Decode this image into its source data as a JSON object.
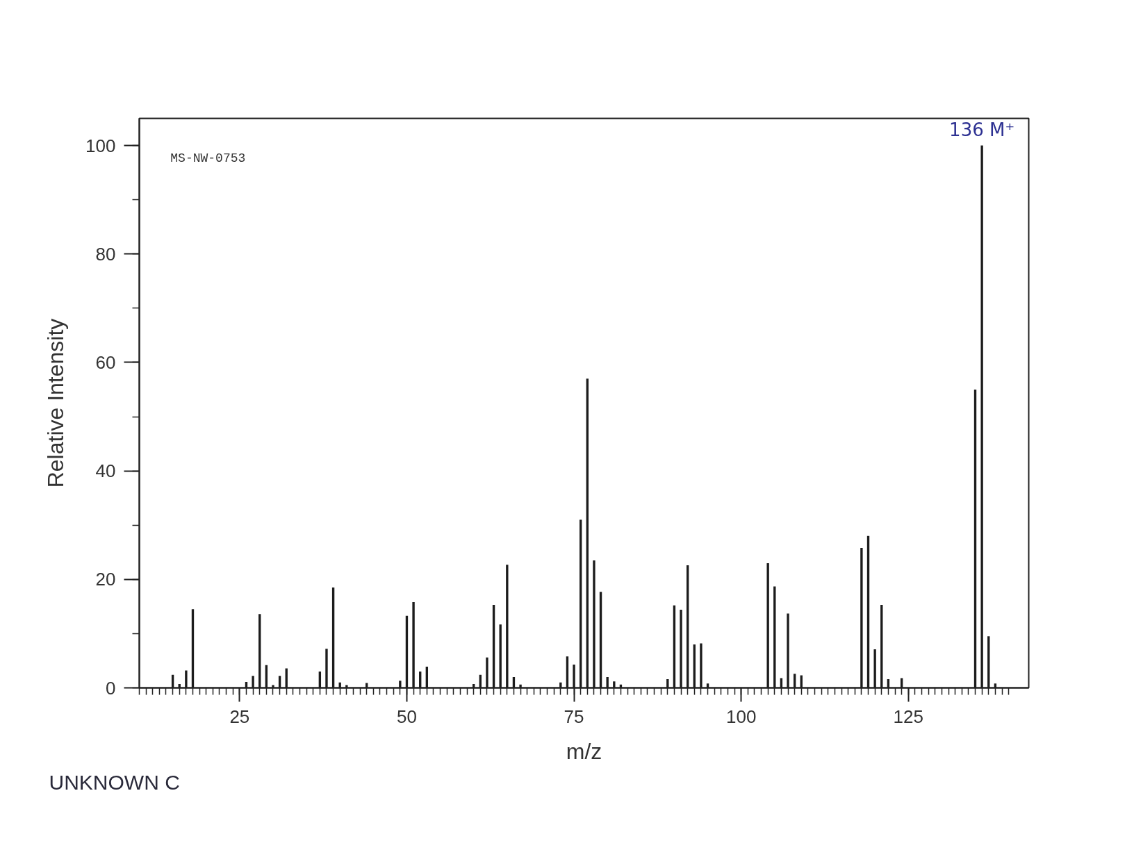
{
  "chart_data": {
    "type": "bar",
    "xlabel": "m/z",
    "ylabel": "Relative Intensity",
    "annotations": [
      "MS-NW-0753",
      {
        "text": "136 M⁺",
        "x": 136,
        "y": 100
      },
      "UNKNOWN C"
    ],
    "x": [
      15,
      16,
      17,
      18,
      26,
      27,
      28,
      29,
      30,
      31,
      32,
      37,
      38,
      39,
      40,
      41,
      44,
      49,
      50,
      51,
      52,
      53,
      60,
      61,
      62,
      63,
      64,
      65,
      66,
      67,
      73,
      74,
      75,
      76,
      77,
      78,
      79,
      80,
      81,
      82,
      89,
      90,
      91,
      92,
      93,
      94,
      95,
      104,
      105,
      106,
      107,
      108,
      109,
      118,
      119,
      120,
      121,
      122,
      124,
      135,
      136,
      137,
      138
    ],
    "values": [
      2.4,
      0.7,
      3.2,
      14.5,
      1.1,
      2.2,
      13.6,
      4.2,
      0.5,
      2.2,
      3.6,
      3.0,
      7.2,
      18.5,
      1.0,
      0.5,
      0.9,
      1.3,
      13.3,
      15.8,
      3.0,
      3.9,
      0.7,
      2.4,
      5.6,
      15.3,
      11.7,
      22.7,
      2.0,
      0.6,
      1.0,
      5.8,
      4.3,
      31,
      57,
      23.5,
      17.7,
      2.0,
      1.2,
      0.6,
      1.6,
      15.2,
      14.4,
      22.6,
      8.0,
      8.2,
      0.8,
      23.0,
      18.7,
      1.8,
      13.7,
      2.6,
      2.3,
      25.8,
      28.0,
      7.1,
      15.3,
      1.6,
      1.8,
      55,
      100,
      9.5,
      0.8
    ],
    "color": "#1c1c1c",
    "xlim": [
      10,
      143
    ],
    "ylim": [
      0,
      105
    ],
    "xticks": [
      {
        "value": 10,
        "label": null
      },
      {
        "value": 11,
        "label": null
      },
      {
        "value": 12,
        "label": null
      },
      {
        "value": 13,
        "label": null
      },
      {
        "value": 14,
        "label": null
      },
      {
        "value": 15,
        "label": null
      },
      {
        "value": 16,
        "label": null
      },
      {
        "value": 17,
        "label": null
      },
      {
        "value": 18,
        "label": null
      },
      {
        "value": 19,
        "label": null
      },
      {
        "value": 20,
        "label": null
      },
      {
        "value": 21,
        "label": null
      },
      {
        "value": 22,
        "label": null
      },
      {
        "value": 23,
        "label": null
      },
      {
        "value": 24,
        "label": null
      },
      25,
      {
        "value": 26,
        "label": null
      },
      {
        "value": 27,
        "label": null
      },
      {
        "value": 28,
        "label": null
      },
      {
        "value": 29,
        "label": null
      },
      {
        "value": 30,
        "label": null
      },
      {
        "value": 31,
        "label": null
      },
      {
        "value": 32,
        "label": null
      },
      {
        "value": 33,
        "label": null
      },
      {
        "value": 34,
        "label": null
      },
      {
        "value": 35,
        "label": null
      },
      {
        "value": 36,
        "label": null
      },
      {
        "value": 37,
        "label": null
      },
      {
        "value": 38,
        "label": null
      },
      {
        "value": 39,
        "label": null
      },
      {
        "value": 40,
        "label": null
      },
      {
        "value": 41,
        "label": null
      },
      {
        "value": 42,
        "label": null
      },
      {
        "value": 43,
        "label": null
      },
      {
        "value": 44,
        "label": null
      },
      {
        "value": 45,
        "label": null
      },
      {
        "value": 46,
        "label": null
      },
      {
        "value": 47,
        "label": null
      },
      {
        "value": 48,
        "label": null
      },
      {
        "value": 49,
        "label": null
      },
      50,
      {
        "value": 51,
        "label": null
      },
      {
        "value": 52,
        "label": null
      },
      {
        "value": 53,
        "label": null
      },
      {
        "value": 54,
        "label": null
      },
      {
        "value": 55,
        "label": null
      },
      {
        "value": 56,
        "label": null
      },
      {
        "value": 57,
        "label": null
      },
      {
        "value": 58,
        "label": null
      },
      {
        "value": 59,
        "label": null
      },
      {
        "value": 60,
        "label": null
      },
      {
        "value": 61,
        "label": null
      },
      {
        "value": 62,
        "label": null
      },
      {
        "value": 63,
        "label": null
      },
      {
        "value": 64,
        "label": null
      },
      {
        "value": 65,
        "label": null
      },
      {
        "value": 66,
        "label": null
      },
      {
        "value": 67,
        "label": null
      },
      {
        "value": 68,
        "label": null
      },
      {
        "value": 69,
        "label": null
      },
      {
        "value": 70,
        "label": null
      },
      {
        "value": 71,
        "label": null
      },
      {
        "value": 72,
        "label": null
      },
      {
        "value": 73,
        "label": null
      },
      {
        "value": 74,
        "label": null
      },
      75,
      {
        "value": 76,
        "label": null
      },
      {
        "value": 77,
        "label": null
      },
      {
        "value": 78,
        "label": null
      },
      {
        "value": 79,
        "label": null
      },
      {
        "value": 80,
        "label": null
      },
      {
        "value": 81,
        "label": null
      },
      {
        "value": 82,
        "label": null
      },
      {
        "value": 83,
        "label": null
      },
      {
        "value": 84,
        "label": null
      },
      {
        "value": 85,
        "label": null
      },
      {
        "value": 86,
        "label": null
      },
      {
        "value": 87,
        "label": null
      },
      {
        "value": 88,
        "label": null
      },
      {
        "value": 89,
        "label": null
      },
      {
        "value": 90,
        "label": null
      },
      {
        "value": 91,
        "label": null
      },
      {
        "value": 92,
        "label": null
      },
      {
        "value": 93,
        "label": null
      },
      {
        "value": 94,
        "label": null
      },
      {
        "value": 95,
        "label": null
      },
      {
        "value": 96,
        "label": null
      },
      {
        "value": 97,
        "label": null
      },
      {
        "value": 98,
        "label": null
      },
      {
        "value": 99,
        "label": null
      },
      100,
      {
        "value": 101,
        "label": null
      },
      {
        "value": 102,
        "label": null
      },
      {
        "value": 103,
        "label": null
      },
      {
        "value": 104,
        "label": null
      },
      {
        "value": 105,
        "label": null
      },
      {
        "value": 106,
        "label": null
      },
      {
        "value": 107,
        "label": null
      },
      {
        "value": 108,
        "label": null
      },
      {
        "value": 109,
        "label": null
      },
      {
        "value": 110,
        "label": null
      },
      {
        "value": 111,
        "label": null
      },
      {
        "value": 112,
        "label": null
      },
      {
        "value": 113,
        "label": null
      },
      {
        "value": 114,
        "label": null
      },
      {
        "value": 115,
        "label": null
      },
      {
        "value": 116,
        "label": null
      },
      {
        "value": 117,
        "label": null
      },
      {
        "value": 118,
        "label": null
      },
      {
        "value": 119,
        "label": null
      },
      {
        "value": 120,
        "label": null
      },
      {
        "value": 121,
        "label": null
      },
      {
        "value": 122,
        "label": null
      },
      {
        "value": 123,
        "label": null
      },
      {
        "value": 124,
        "label": null
      },
      125,
      {
        "value": 126,
        "label": null
      },
      {
        "value": 127,
        "label": null
      },
      {
        "value": 128,
        "label": null
      },
      {
        "value": 129,
        "label": null
      },
      {
        "value": 130,
        "label": null
      },
      {
        "value": 131,
        "label": null
      },
      {
        "value": 132,
        "label": null
      },
      {
        "value": 133,
        "label": null
      },
      {
        "value": 134,
        "label": null
      },
      {
        "value": 135,
        "label": null
      },
      {
        "value": 136,
        "label": null
      },
      {
        "value": 137,
        "label": null
      },
      {
        "value": 138,
        "label": null
      },
      {
        "value": 139,
        "label": null
      },
      {
        "value": 140,
        "label": null
      }
    ],
    "yticks": [
      0,
      {
        "value": 10,
        "label": null
      },
      20,
      {
        "value": 30,
        "label": null
      },
      40,
      {
        "value": 50,
        "label": null
      },
      60,
      {
        "value": 70,
        "label": null
      },
      80,
      {
        "value": 90,
        "label": null
      },
      100
    ]
  }
}
